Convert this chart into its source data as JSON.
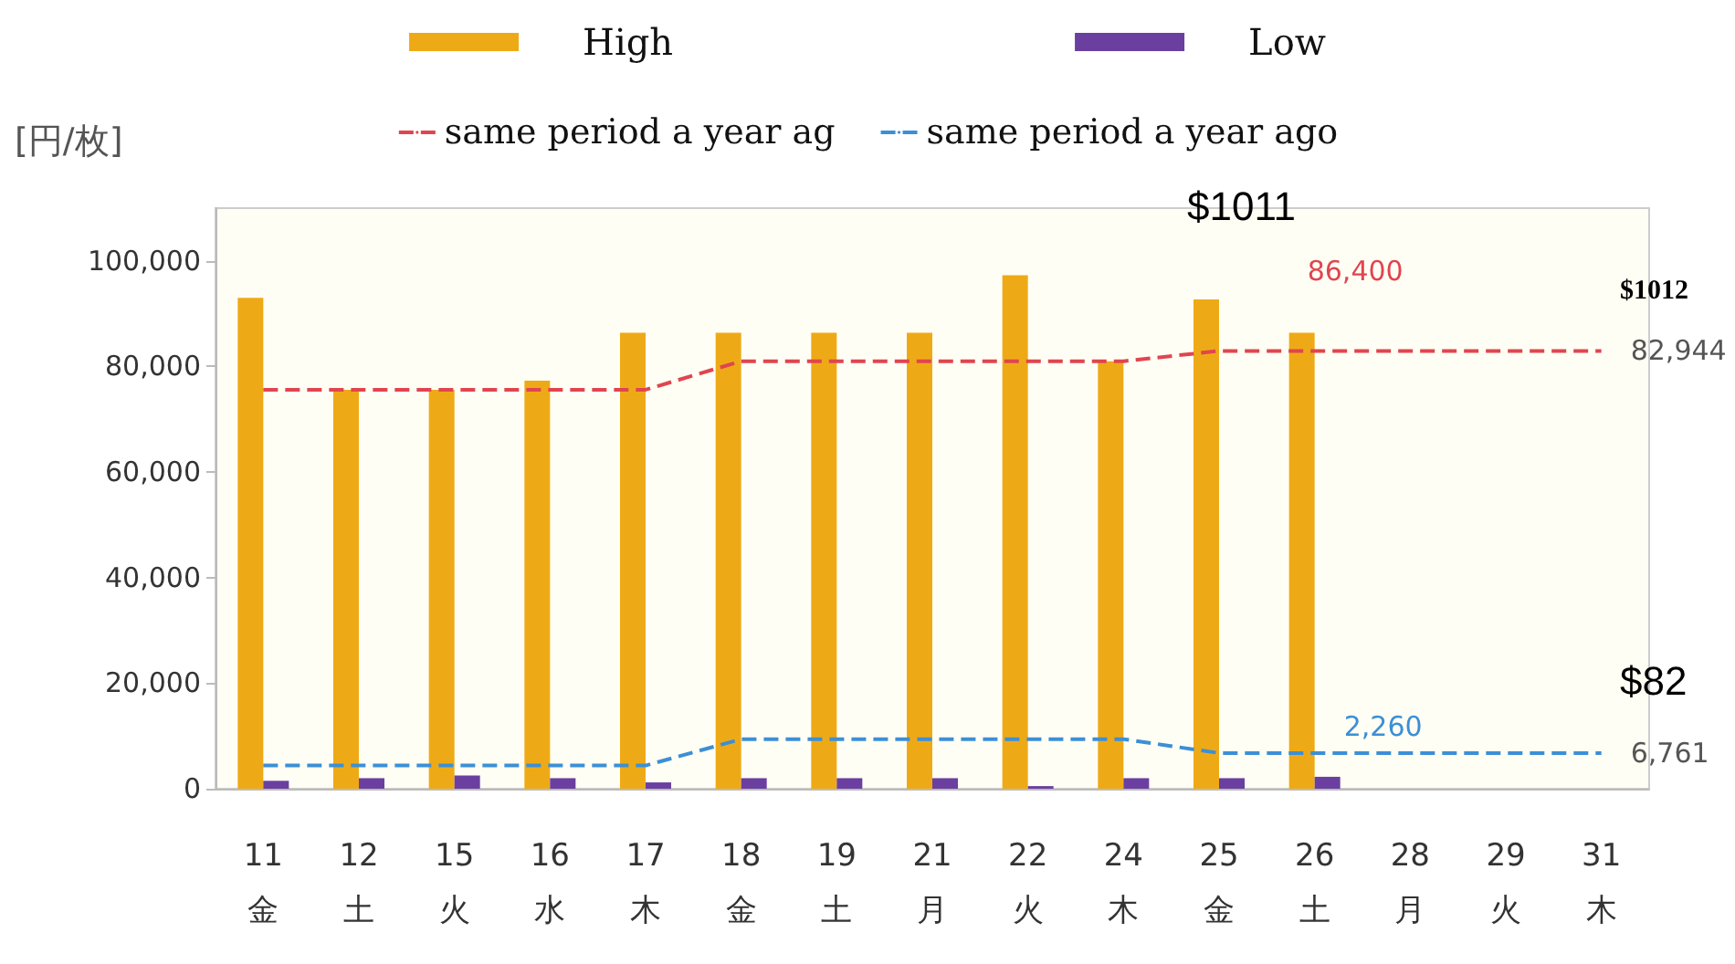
{
  "chart_data": {
    "type": "bar",
    "ylabel": "[円/枚]",
    "categories": [
      "11\n金",
      "12\n土",
      "15\n火",
      "16\n水",
      "17\n木",
      "18\n金",
      "19\n土",
      "21\n月",
      "22\n火",
      "24\n木",
      "25\n金",
      "26\n土",
      "28\n月",
      "29\n火",
      "31\n木"
    ],
    "series": [
      {
        "name": "High",
        "color": "#eeaa16",
        "values": [
          93000,
          75600,
          75600,
          77300,
          86400,
          86400,
          86400,
          86400,
          97300,
          81000,
          92700,
          86400,
          null,
          null,
          null
        ]
      },
      {
        "name": "Low",
        "color": "#6a3fa0",
        "values": [
          1500,
          2000,
          2500,
          2000,
          1200,
          2000,
          2000,
          2000,
          500,
          2000,
          2000,
          2260,
          null,
          null,
          null
        ]
      },
      {
        "name": "same period a year ag",
        "type": "line",
        "color": "#e0454f",
        "line_style": "dashed",
        "marker": "none",
        "values": [
          75600,
          75600,
          75600,
          75600,
          75600,
          81000,
          81000,
          81000,
          81000,
          81000,
          82944,
          82944,
          82944,
          82944,
          82944
        ]
      },
      {
        "name": "same period a year ago",
        "type": "line",
        "color": "#3c8fd6",
        "line_style": "dashed",
        "marker": "none",
        "values": [
          4400,
          4400,
          4400,
          4400,
          4400,
          9400,
          9400,
          9400,
          9400,
          9400,
          6761,
          6761,
          6761,
          6761,
          6761
        ]
      }
    ],
    "ylim": [
      0,
      110000
    ],
    "yticks": [
      0,
      {
        "value": 20000,
        "label": "20,000"
      },
      {
        "value": 40000,
        "label": "40,000"
      },
      {
        "value": 60000,
        "label": "60,000"
      },
      {
        "value": 80000,
        "label": "80,000"
      },
      {
        "value": 100000,
        "label": "100,000"
      }
    ],
    "grid": false,
    "legend": "top",
    "annotations": [
      "$1011",
      "$1012",
      "$82",
      {
        "text": "86,400",
        "x": "26\n土",
        "y": 86400
      },
      {
        "text": "82,944",
        "x": "31\n木",
        "y": 82944
      },
      {
        "text": "2,260",
        "x": "26\n土",
        "y": 2260
      },
      {
        "text": "6,761",
        "x": "31\n木",
        "y": 6761
      }
    ]
  }
}
